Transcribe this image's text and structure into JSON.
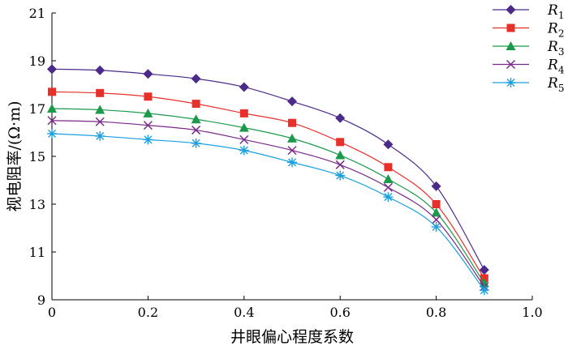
{
  "chart_data": {
    "type": "line",
    "xlabel": "井眼偏心程度系数",
    "ylabel": "视电阻率/(Ω·m)",
    "xlim": [
      0,
      1.0
    ],
    "ylim": [
      9,
      21
    ],
    "xticks": [
      "0",
      "0.2",
      "0.4",
      "0.6",
      "0.8",
      "1.0"
    ],
    "yticks": [
      "9",
      "11",
      "13",
      "15",
      "17",
      "19",
      "21"
    ],
    "grid": false,
    "legend_position": "top-right",
    "x": [
      0,
      0.1,
      0.2,
      0.3,
      0.4,
      0.5,
      0.6,
      0.7,
      0.8,
      0.9
    ],
    "series": [
      {
        "name": "R",
        "sub": "1",
        "color": "#4b2a8a",
        "marker": "diamond",
        "values": [
          18.65,
          18.6,
          18.45,
          18.25,
          17.9,
          17.3,
          16.6,
          15.5,
          13.75,
          10.25
        ]
      },
      {
        "name": "R",
        "sub": "2",
        "color": "#e8302a",
        "marker": "square",
        "values": [
          17.7,
          17.65,
          17.5,
          17.2,
          16.8,
          16.4,
          15.6,
          14.55,
          13.0,
          9.9
        ]
      },
      {
        "name": "R",
        "sub": "3",
        "color": "#1a9a4a",
        "marker": "triangle",
        "values": [
          17.0,
          16.95,
          16.8,
          16.55,
          16.2,
          15.75,
          15.05,
          14.05,
          12.65,
          9.7
        ]
      },
      {
        "name": "R",
        "sub": "4",
        "color": "#7a2a8a",
        "marker": "x",
        "values": [
          16.5,
          16.45,
          16.3,
          16.1,
          15.7,
          15.25,
          14.65,
          13.7,
          12.35,
          9.55
        ]
      },
      {
        "name": "R",
        "sub": "5",
        "color": "#1aa0e0",
        "marker": "asterisk",
        "values": [
          15.95,
          15.85,
          15.7,
          15.55,
          15.25,
          14.75,
          14.2,
          13.3,
          12.05,
          9.4
        ]
      }
    ]
  }
}
